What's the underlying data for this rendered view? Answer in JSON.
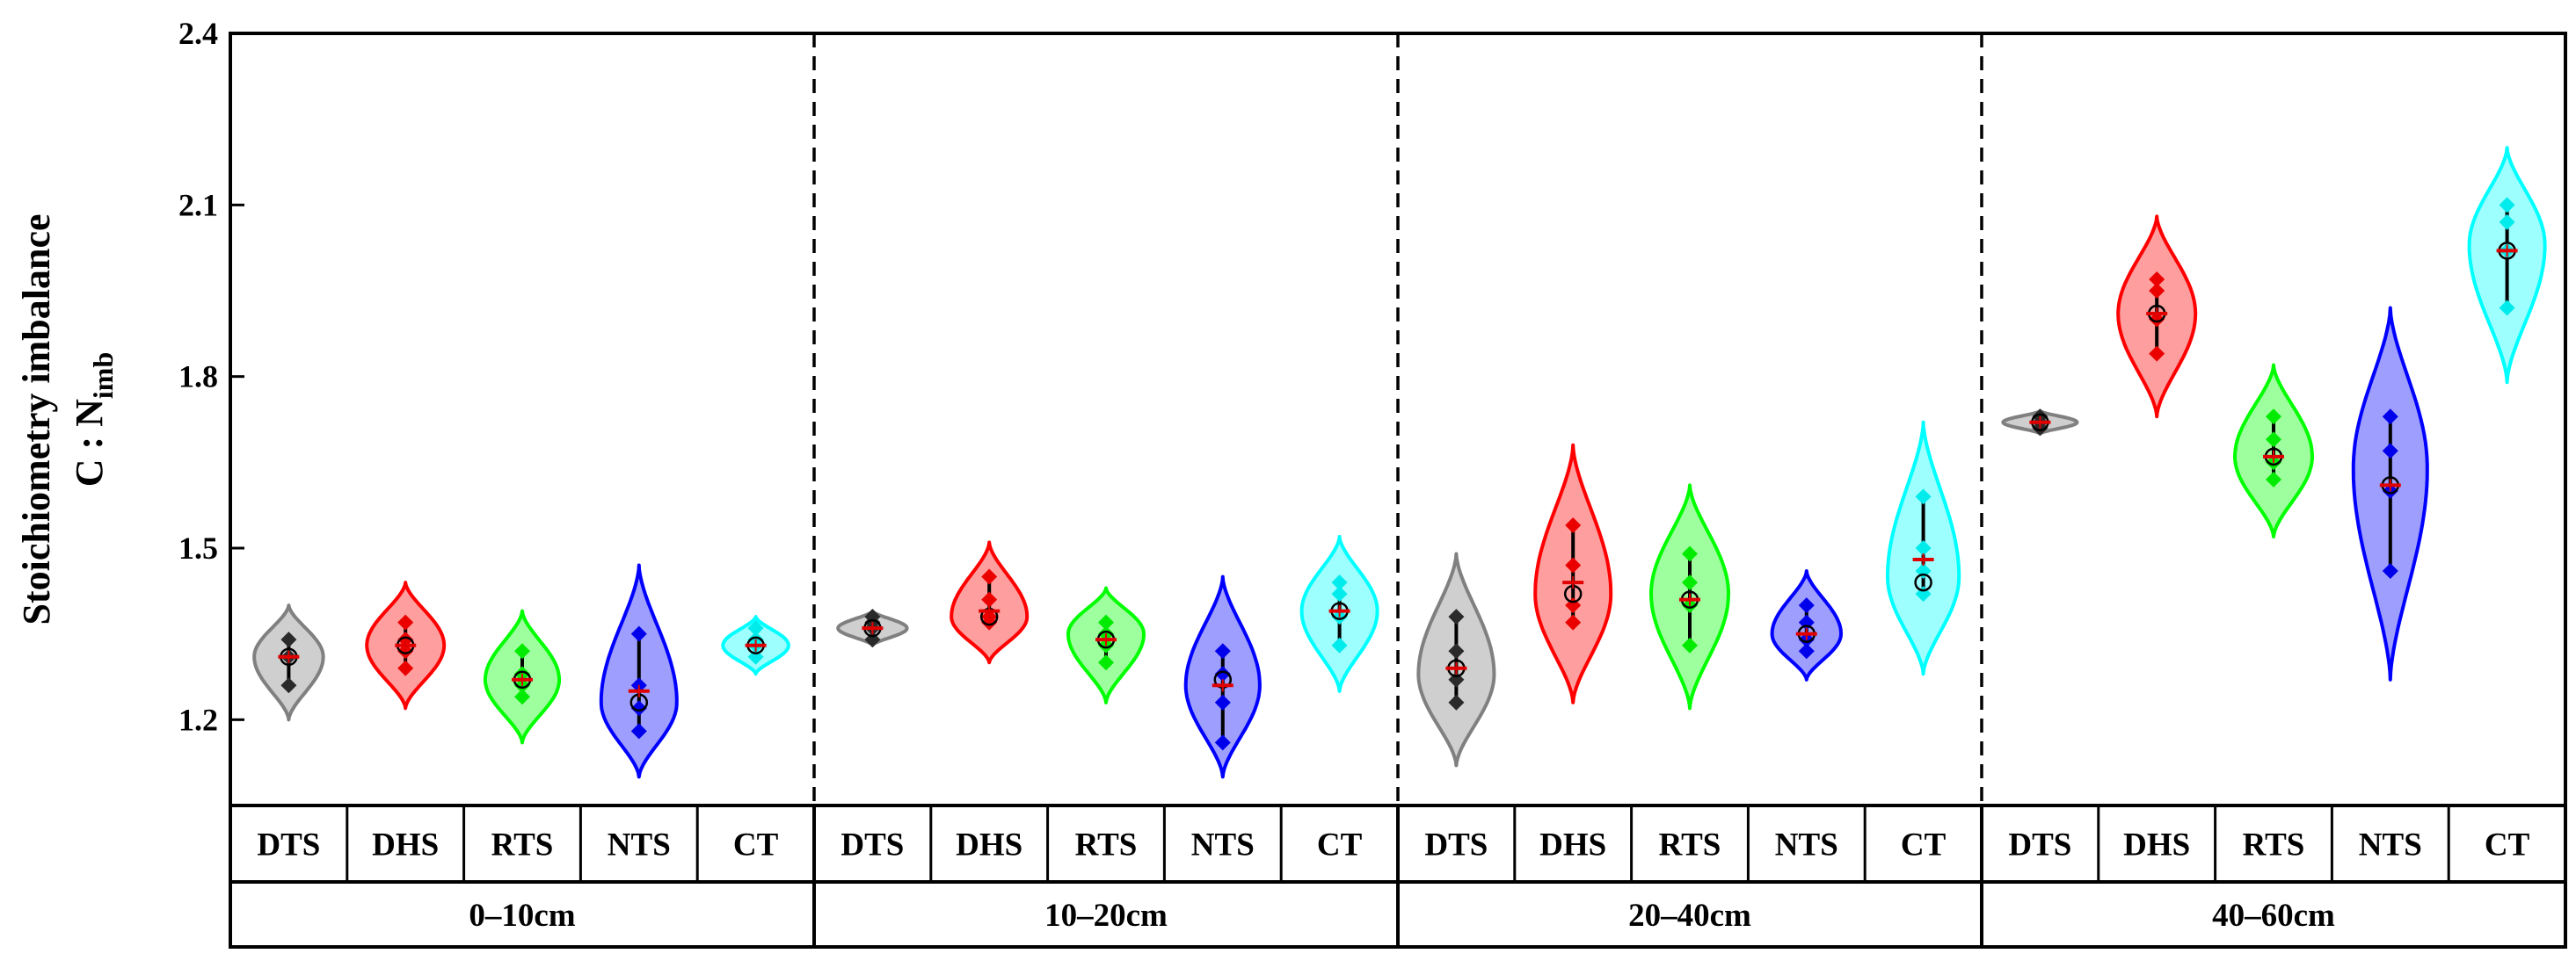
{
  "chart_data": {
    "type": "violin",
    "ylabel_line1": "Stoichiometry imbalance",
    "ylabel_line2_main": "C : N",
    "ylabel_line2_sub": "imb",
    "ylim": [
      1.05,
      2.4
    ],
    "yticks": [
      "1.2",
      "1.5",
      "1.8",
      "2.1",
      "2.4"
    ],
    "ytick_values": [
      1.2,
      1.5,
      1.8,
      2.1,
      2.4
    ],
    "treatments": [
      "DTS",
      "DHS",
      "RTS",
      "NTS",
      "CT"
    ],
    "colors": {
      "DTS": "#808080",
      "DHS": "#ff0000",
      "RTS": "#00ff00",
      "NTS": "#0000ff",
      "CT": "#00ffff"
    },
    "depths": [
      {
        "label": "0–10cm",
        "groups": [
          {
            "treatment": "DTS",
            "min": 1.2,
            "max": 1.4,
            "peak": 1.31,
            "width": 0.82,
            "mean": 1.31,
            "median": 1.31,
            "points": [
              1.26,
              1.31,
              1.34
            ]
          },
          {
            "treatment": "DHS",
            "min": 1.22,
            "max": 1.44,
            "peak": 1.33,
            "width": 0.92,
            "mean": 1.33,
            "median": 1.33,
            "points": [
              1.29,
              1.32,
              1.34,
              1.37
            ]
          },
          {
            "treatment": "RTS",
            "min": 1.16,
            "max": 1.39,
            "peak": 1.27,
            "width": 0.88,
            "mean": 1.27,
            "median": 1.27,
            "points": [
              1.24,
              1.26,
              1.28,
              1.32
            ]
          },
          {
            "treatment": "NTS",
            "min": 1.1,
            "max": 1.47,
            "peak": 1.23,
            "width": 0.9,
            "mean": 1.25,
            "median": 1.23,
            "points": [
              1.18,
              1.22,
              1.26,
              1.35
            ]
          },
          {
            "treatment": "CT",
            "min": 1.28,
            "max": 1.38,
            "peak": 1.33,
            "width": 0.78,
            "mean": 1.33,
            "median": 1.33,
            "points": [
              1.31,
              1.33,
              1.34,
              1.36
            ]
          }
        ]
      },
      {
        "label": "10–20cm",
        "groups": [
          {
            "treatment": "DTS",
            "min": 1.33,
            "max": 1.39,
            "peak": 1.36,
            "width": 0.82,
            "mean": 1.36,
            "median": 1.36,
            "points": [
              1.34,
              1.36,
              1.37,
              1.38
            ]
          },
          {
            "treatment": "DHS",
            "min": 1.3,
            "max": 1.51,
            "peak": 1.38,
            "width": 0.9,
            "mean": 1.39,
            "median": 1.38,
            "points": [
              1.37,
              1.38,
              1.41,
              1.45
            ]
          },
          {
            "treatment": "RTS",
            "min": 1.23,
            "max": 1.43,
            "peak": 1.35,
            "width": 0.9,
            "mean": 1.34,
            "median": 1.34,
            "points": [
              1.3,
              1.33,
              1.35,
              1.37
            ]
          },
          {
            "treatment": "NTS",
            "min": 1.1,
            "max": 1.45,
            "peak": 1.26,
            "width": 0.88,
            "mean": 1.26,
            "median": 1.27,
            "points": [
              1.16,
              1.23,
              1.28,
              1.32
            ]
          },
          {
            "treatment": "CT",
            "min": 1.25,
            "max": 1.52,
            "peak": 1.39,
            "width": 0.9,
            "mean": 1.39,
            "median": 1.39,
            "points": [
              1.33,
              1.38,
              1.42,
              1.44
            ]
          }
        ]
      },
      {
        "label": "20–40cm",
        "groups": [
          {
            "treatment": "DTS",
            "min": 1.12,
            "max": 1.49,
            "peak": 1.28,
            "width": 0.9,
            "mean": 1.29,
            "median": 1.29,
            "points": [
              1.23,
              1.27,
              1.32,
              1.38
            ]
          },
          {
            "treatment": "DHS",
            "min": 1.23,
            "max": 1.68,
            "peak": 1.42,
            "width": 0.9,
            "mean": 1.44,
            "median": 1.42,
            "points": [
              1.37,
              1.4,
              1.47,
              1.54
            ]
          },
          {
            "treatment": "RTS",
            "min": 1.22,
            "max": 1.61,
            "peak": 1.42,
            "width": 0.92,
            "mean": 1.41,
            "median": 1.41,
            "points": [
              1.33,
              1.4,
              1.44,
              1.49
            ]
          },
          {
            "treatment": "NTS",
            "min": 1.27,
            "max": 1.46,
            "peak": 1.35,
            "width": 0.82,
            "mean": 1.35,
            "median": 1.35,
            "points": [
              1.32,
              1.34,
              1.37,
              1.4
            ]
          },
          {
            "treatment": "CT",
            "min": 1.28,
            "max": 1.72,
            "peak": 1.45,
            "width": 0.85,
            "mean": 1.48,
            "median": 1.44,
            "points": [
              1.42,
              1.46,
              1.5,
              1.59
            ]
          }
        ]
      },
      {
        "label": "40–60cm",
        "groups": [
          {
            "treatment": "DTS",
            "min": 1.7,
            "max": 1.74,
            "peak": 1.72,
            "width": 0.88,
            "mean": 1.72,
            "median": 1.72,
            "points": [
              1.71,
              1.72,
              1.73
            ]
          },
          {
            "treatment": "DHS",
            "min": 1.73,
            "max": 2.08,
            "peak": 1.91,
            "width": 0.92,
            "mean": 1.91,
            "median": 1.91,
            "points": [
              1.84,
              1.9,
              1.95,
              1.97
            ]
          },
          {
            "treatment": "RTS",
            "min": 1.52,
            "max": 1.82,
            "peak": 1.66,
            "width": 0.92,
            "mean": 1.66,
            "median": 1.66,
            "points": [
              1.62,
              1.65,
              1.69,
              1.73
            ]
          },
          {
            "treatment": "NTS",
            "min": 1.27,
            "max": 1.92,
            "peak": 1.64,
            "width": 0.88,
            "mean": 1.61,
            "median": 1.61,
            "points": [
              1.46,
              1.6,
              1.67,
              1.73
            ]
          },
          {
            "treatment": "CT",
            "min": 1.79,
            "max": 2.2,
            "peak": 2.03,
            "width": 0.9,
            "mean": 2.02,
            "median": 2.02,
            "points": [
              1.92,
              2.02,
              2.07,
              2.1
            ]
          }
        ]
      }
    ]
  }
}
